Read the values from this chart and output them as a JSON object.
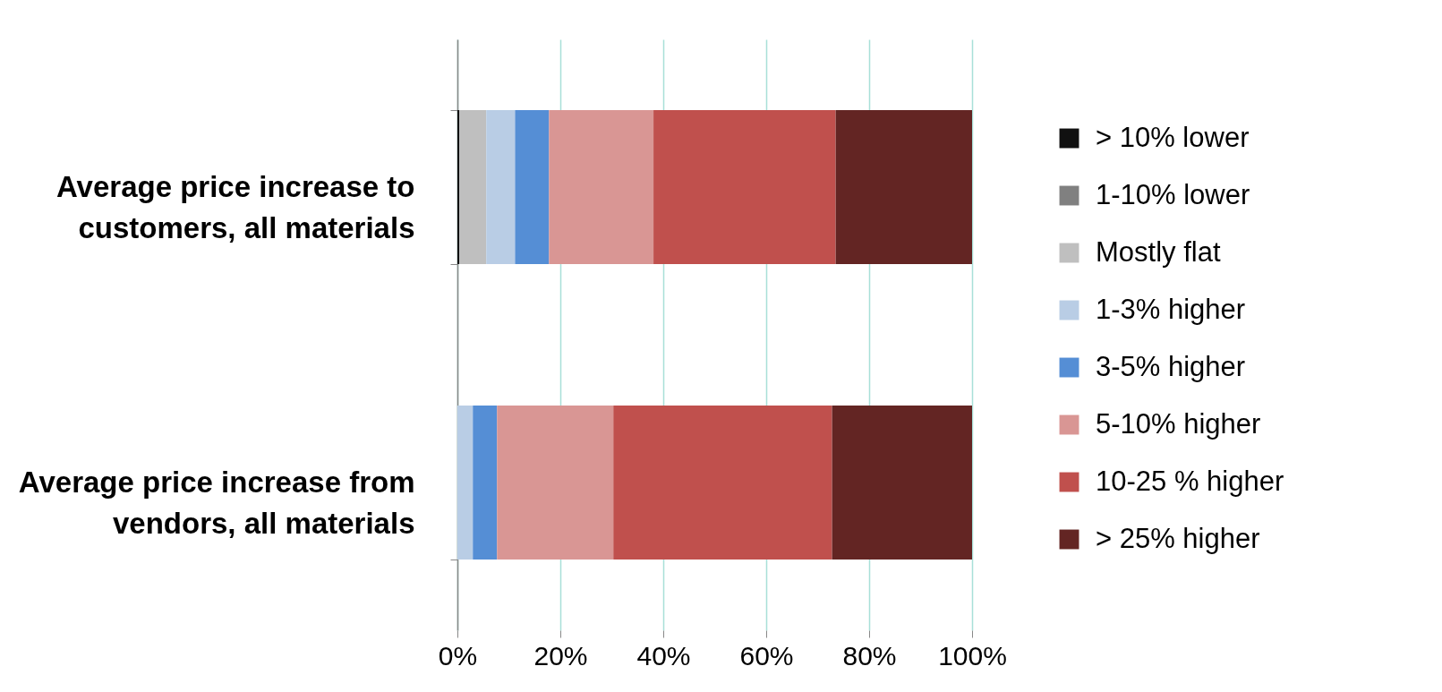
{
  "chart_data": {
    "type": "bar",
    "orientation": "horizontal",
    "stacked": true,
    "categories": [
      "Average price increase to customers, all materials",
      "Average price increase from vendors, all materials"
    ],
    "series": [
      {
        "name": "> 10% lower",
        "color": "#111111",
        "values": [
          0.4,
          0
        ]
      },
      {
        "name": "1-10% lower",
        "color": "#808080",
        "values": [
          0,
          0
        ]
      },
      {
        "name": "Mostly flat",
        "color": "#bfbfbf",
        "values": [
          5.2,
          0
        ]
      },
      {
        "name": "1-3% higher",
        "color": "#b9cde5",
        "values": [
          5.6,
          3.0
        ]
      },
      {
        "name": "3-5% higher",
        "color": "#558ed5",
        "values": [
          6.6,
          4.7
        ]
      },
      {
        "name": "5-10% higher",
        "color": "#d99694",
        "values": [
          20.3,
          22.6
        ]
      },
      {
        "name": "10-25 % higher",
        "color": "#c0504d",
        "values": [
          35.4,
          42.5
        ]
      },
      {
        "name": "> 25% higher",
        "color": "#632523",
        "values": [
          26.5,
          27.2
        ]
      }
    ],
    "xlim": [
      0,
      100
    ],
    "xticks": [
      {
        "value": 0,
        "label": "0%"
      },
      {
        "value": 20,
        "label": "20%"
      },
      {
        "value": 40,
        "label": "40%"
      },
      {
        "value": 60,
        "label": "60%"
      },
      {
        "value": 80,
        "label": "80%"
      },
      {
        "value": 100,
        "label": "100%"
      }
    ],
    "grid": "x",
    "legend": "right"
  }
}
